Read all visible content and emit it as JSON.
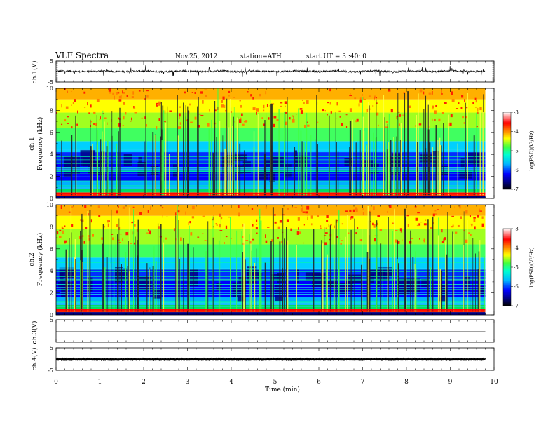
{
  "header": {
    "title": "VLF  Spectra",
    "date": "Nov.25, 2012",
    "station": "station=ATH",
    "start_ut": "start  UT  =   3  :40: 0"
  },
  "chart_data": [
    {
      "type": "line",
      "name": "ch1-voltage",
      "ylabel": "ch.1(V)",
      "ylim": [
        -5,
        5
      ],
      "yticks": [
        "5",
        "-5"
      ],
      "xlim": [
        0,
        10
      ],
      "data_end_min": 9.8
    },
    {
      "type": "heatmap",
      "name": "ch1-spectrogram",
      "ylabel_top": "ch.1",
      "ylabel": "Frequency  (kHz)",
      "ylim": [
        0,
        10
      ],
      "yticks": [
        "0",
        "2",
        "4",
        "6",
        "8",
        "10"
      ],
      "xlim": [
        0,
        10
      ],
      "data_end_min": 9.8,
      "colorbar": {
        "label": "log(PSD)(V²/Hz)",
        "range": [
          -7,
          -3
        ],
        "ticks": [
          "-3",
          "-4",
          "-5",
          "-6",
          "-7"
        ]
      }
    },
    {
      "type": "heatmap",
      "name": "ch2-spectrogram",
      "ylabel_top": "ch.2",
      "ylabel": "Frequency  (kHz)",
      "ylim": [
        0,
        10
      ],
      "yticks": [
        "0",
        "2",
        "4",
        "6",
        "8",
        "10"
      ],
      "xlim": [
        0,
        10
      ],
      "data_end_min": 9.8,
      "colorbar": {
        "label": "log(PSD)(V²/Hz)",
        "range": [
          -7,
          -3
        ],
        "ticks": [
          "-3",
          "-4",
          "-5",
          "-6",
          "-7"
        ]
      }
    },
    {
      "type": "line",
      "name": "ch3-voltage",
      "ylabel": "ch.3(V)",
      "ylim": [
        -5,
        5
      ],
      "yticks": [
        "5"
      ],
      "xlim": [
        0,
        10
      ],
      "data_end_min": 9.8
    },
    {
      "type": "line",
      "name": "ch4-voltage",
      "ylabel": "ch.4(V)",
      "ylim": [
        -5,
        5
      ],
      "yticks": [
        "5",
        "-5"
      ],
      "xlim": [
        0,
        10
      ],
      "data_end_min": 9.8
    }
  ],
  "xaxis": {
    "label": "Time  (min)",
    "ticks": [
      "0",
      "1",
      "2",
      "3",
      "4",
      "5",
      "6",
      "7",
      "8",
      "9",
      "10"
    ]
  }
}
